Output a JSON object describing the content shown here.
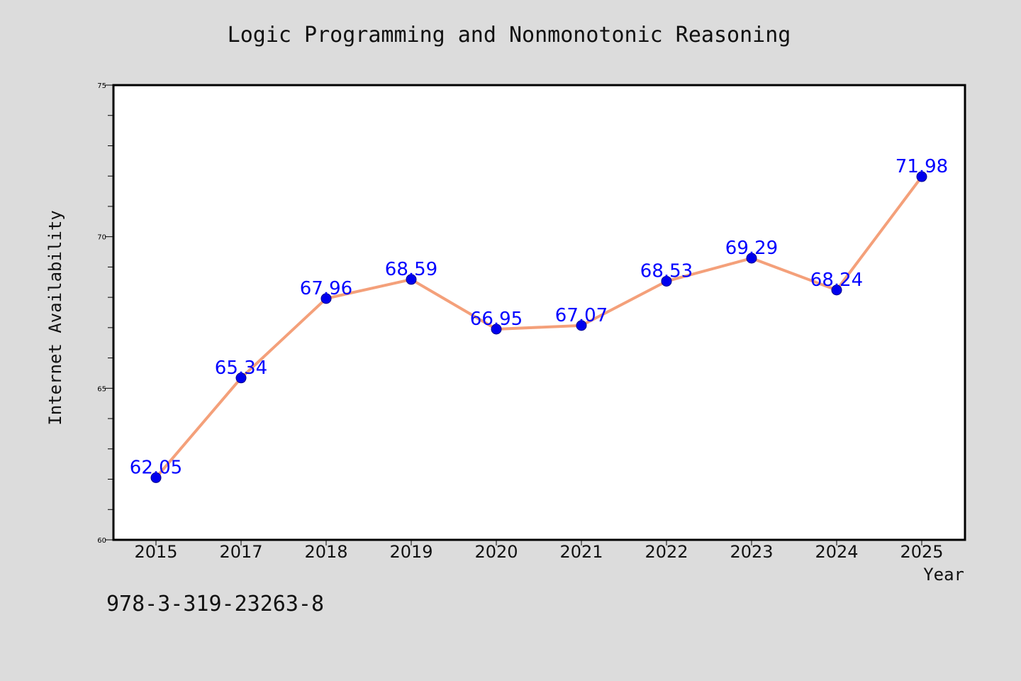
{
  "chart_data": {
    "type": "line",
    "title": "Logic Programming and Nonmonotonic Reasoning",
    "xlabel": "Year",
    "ylabel": "Internet Availability",
    "categories": [
      "2015",
      "2017",
      "2018",
      "2019",
      "2020",
      "2021",
      "2022",
      "2023",
      "2024",
      "2025"
    ],
    "values": [
      62.05,
      65.34,
      67.96,
      68.59,
      66.95,
      67.07,
      68.53,
      69.29,
      68.24,
      71.98
    ],
    "data_labels": [
      "62.05",
      "65.34",
      "67.96",
      "68.59",
      "66.95",
      "67.07",
      "68.53",
      "69.29",
      "68.24",
      "71.98"
    ],
    "ylim": [
      60,
      75
    ],
    "yticks": [
      "60",
      "65",
      "70",
      "75"
    ],
    "grid": false,
    "legend": "none",
    "line_color": "#f4a07a",
    "marker_color": "#0000ee",
    "label_color": "#0000ff",
    "background": "#dcdcdc",
    "plot_background": "#ffffff"
  },
  "footer": {
    "isbn": "978-3-319-23263-8"
  }
}
